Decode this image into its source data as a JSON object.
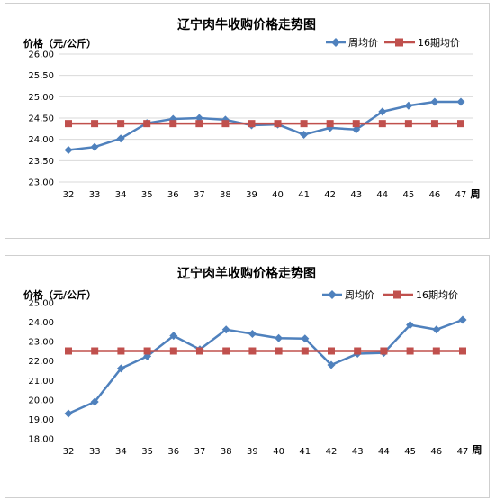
{
  "chart_data": [
    {
      "type": "line",
      "title": "辽宁肉牛收购价格走势图",
      "ylabel": "价格（元/公斤）",
      "xlabel": "周",
      "categories": [
        "32",
        "33",
        "34",
        "35",
        "36",
        "37",
        "38",
        "39",
        "40",
        "41",
        "42",
        "43",
        "44",
        "45",
        "46",
        "47"
      ],
      "yticks": [
        "26.00",
        "25.50",
        "25.00",
        "24.50",
        "24.00",
        "23.50",
        "23.00"
      ],
      "ylim": [
        23.0,
        26.0
      ],
      "grid": "horizontal",
      "legend_position": "top-right",
      "series": [
        {
          "name": "周均价",
          "color": "#4f81bd",
          "marker": "diamond",
          "values": [
            23.75,
            23.82,
            24.02,
            24.38,
            24.48,
            24.5,
            24.46,
            24.33,
            24.35,
            24.11,
            24.27,
            24.23,
            24.65,
            24.79,
            24.88,
            24.88
          ]
        },
        {
          "name": "16期均价",
          "color": "#c0504d",
          "marker": "square",
          "values": [
            24.37,
            24.37,
            24.37,
            24.37,
            24.37,
            24.37,
            24.37,
            24.37,
            24.37,
            24.37,
            24.37,
            24.37,
            24.37,
            24.37,
            24.37,
            24.37
          ]
        }
      ]
    },
    {
      "type": "line",
      "title": "辽宁肉羊收购价格走势图",
      "ylabel": "价格（元/公斤）",
      "xlabel": "周",
      "categories": [
        "32",
        "33",
        "34",
        "35",
        "36",
        "37",
        "38",
        "39",
        "40",
        "41",
        "42",
        "43",
        "44",
        "45",
        "46",
        "47"
      ],
      "yticks": [
        "25.00",
        "24.00",
        "23.00",
        "22.00",
        "21.00",
        "20.00",
        "19.00",
        "18.00"
      ],
      "ylim": [
        18.0,
        25.0
      ],
      "grid": "none",
      "legend_position": "top-right",
      "series": [
        {
          "name": "周均价",
          "color": "#4f81bd",
          "marker": "diamond",
          "values": [
            19.3,
            19.9,
            21.62,
            22.25,
            23.3,
            22.6,
            23.62,
            23.4,
            23.18,
            23.16,
            21.8,
            22.38,
            22.42,
            23.86,
            23.62,
            24.12
          ]
        },
        {
          "name": "16期均价",
          "color": "#c0504d",
          "marker": "square",
          "values": [
            22.52,
            22.52,
            22.52,
            22.52,
            22.52,
            22.52,
            22.52,
            22.52,
            22.52,
            22.52,
            22.52,
            22.52,
            22.52,
            22.52,
            22.52,
            22.52
          ]
        }
      ]
    }
  ]
}
